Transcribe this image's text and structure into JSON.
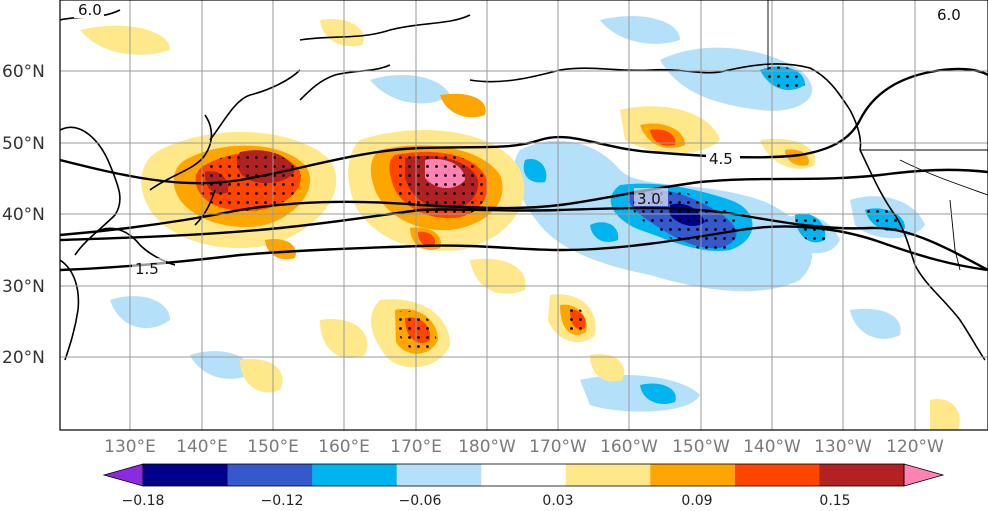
{
  "map": {
    "lat_ticks": [
      "60°N",
      "50°N",
      "40°N",
      "30°N",
      "20°N"
    ],
    "lon_ticks": [
      "130°E",
      "140°E",
      "150°E",
      "160°E",
      "170°E",
      "180°W",
      "170°W",
      "160°W",
      "150°W",
      "140°W",
      "130°W",
      "120°W"
    ],
    "contour_labels": [
      "6.0",
      "4.5",
      "3.0",
      "1.5",
      "6.0"
    ]
  },
  "colorbar": {
    "tick_labels": [
      "−0.18",
      "−0.12",
      "−0.06",
      "0.03",
      "0.09",
      "0.15"
    ],
    "colors": [
      "#8a2be2",
      "#00008b",
      "#3558cd",
      "#00b4f0",
      "#b4e0fa",
      "#ffffff",
      "#ffe88a",
      "#ffa500",
      "#ff4500",
      "#b22222",
      "#ff82b4"
    ]
  }
}
